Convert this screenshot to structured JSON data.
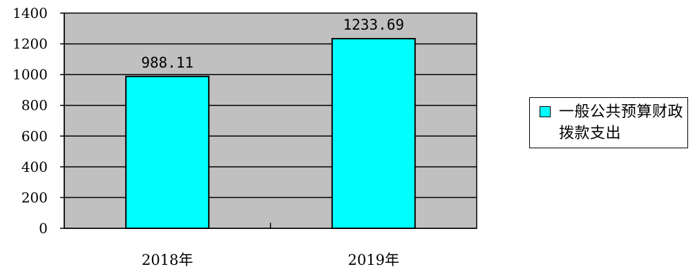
{
  "chart_data": {
    "type": "bar",
    "title": "",
    "xlabel": "",
    "ylabel": "",
    "categories": [
      "2018年",
      "2019年"
    ],
    "series": [
      {
        "name": "一般公共预算财政拨款支出",
        "values": [
          988.11,
          1233.69
        ],
        "data_labels": [
          "988.11",
          "1233.69"
        ]
      }
    ],
    "ylim": [
      0,
      1400
    ],
    "yticks": [
      0,
      200,
      400,
      600,
      800,
      1000,
      1200,
      1400
    ],
    "grid": true,
    "legend_position": "right",
    "colors": {
      "bar_fill": "#00ffff",
      "bar_stroke": "#000000",
      "plot_background": "#c0c0c0",
      "gridline": "#000000"
    }
  }
}
